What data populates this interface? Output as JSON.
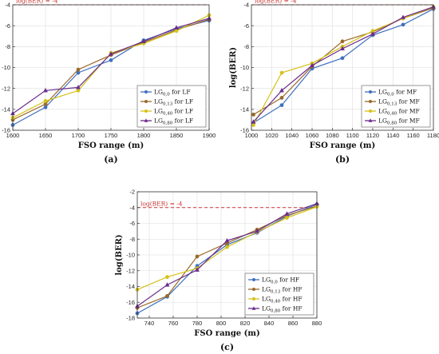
{
  "colors": {
    "LG00": "#3f6fbf",
    "LG013": "#9b6a2a",
    "LG040": "#d4c21a",
    "LG080": "#6a2c8c",
    "threshold": "#cc3333",
    "grid": "#dddddd"
  },
  "chart_data": [
    {
      "type": "line",
      "panel_label": "(a)",
      "xlabel": "FSO range (m)",
      "ylabel": "log(BER)",
      "xlim": [
        1600,
        1900
      ],
      "ylim": [
        -16,
        -4
      ],
      "xticks": [
        1600,
        1650,
        1700,
        1750,
        1800,
        1850,
        1900
      ],
      "yticks": [
        -16,
        -14,
        -12,
        -10,
        -8,
        -6,
        -4
      ],
      "grid": true,
      "legend_position": "bottom-right",
      "threshold": {
        "y": -4,
        "label": "log(BER) = -4"
      },
      "x": [
        1600,
        1650,
        1700,
        1750,
        1800,
        1850,
        1900
      ],
      "series": [
        {
          "name_base": "LG",
          "name_sub": "0,0",
          "name_suffix": " for LF",
          "color_key": "LG00",
          "values": [
            -15.5,
            -13.8,
            -10.5,
            -9.3,
            -7.4,
            -6.3,
            -5.5
          ]
        },
        {
          "name_base": "LG",
          "name_sub": "0,13",
          "name_suffix": " for LF",
          "color_key": "LG013",
          "values": [
            -15.0,
            -13.5,
            -10.2,
            -8.8,
            -7.6,
            -6.4,
            -5.4
          ]
        },
        {
          "name_base": "LG",
          "name_sub": "0,40",
          "name_suffix": " for LF",
          "color_key": "LG040",
          "values": [
            -14.8,
            -13.2,
            -12.2,
            -8.6,
            -7.7,
            -6.5,
            -5.0
          ]
        },
        {
          "name_base": "LG",
          "name_sub": "0,80",
          "name_suffix": " for LF",
          "color_key": "LG080",
          "values": [
            -14.4,
            -12.2,
            -11.9,
            -8.7,
            -7.5,
            -6.2,
            -5.3
          ]
        }
      ]
    },
    {
      "type": "line",
      "panel_label": "(b)",
      "xlabel": "FSO range (m)",
      "ylabel": "log(BER)",
      "xlim": [
        1000,
        1180
      ],
      "ylim": [
        -16,
        -4
      ],
      "xticks": [
        1000,
        1020,
        1040,
        1060,
        1080,
        1100,
        1120,
        1140,
        1160,
        1180
      ],
      "yticks": [
        -16,
        -14,
        -12,
        -10,
        -8,
        -6,
        -4
      ],
      "grid": true,
      "legend_position": "bottom-right",
      "threshold": {
        "y": -4,
        "label": "log(BER) = -4"
      },
      "x": [
        1002,
        1030,
        1060,
        1090,
        1120,
        1150,
        1180
      ],
      "series": [
        {
          "name_base": "LG",
          "name_sub": "0,0",
          "name_suffix": " for MF",
          "color_key": "LG00",
          "values": [
            -15.3,
            -13.6,
            -10.1,
            -9.1,
            -6.9,
            -5.9,
            -4.4
          ]
        },
        {
          "name_base": "LG",
          "name_sub": "0,13",
          "name_suffix": " for MF",
          "color_key": "LG013",
          "values": [
            -14.5,
            -12.9,
            -9.9,
            -7.5,
            -6.6,
            -5.3,
            -4.3
          ]
        },
        {
          "name_base": "LG",
          "name_sub": "0,40",
          "name_suffix": " for MF",
          "color_key": "LG040",
          "values": [
            -15.5,
            -10.5,
            -9.6,
            -8.0,
            -6.5,
            -5.3,
            -4.2
          ]
        },
        {
          "name_base": "LG",
          "name_sub": "0,80",
          "name_suffix": " for MF",
          "color_key": "LG080",
          "values": [
            -15.2,
            -12.2,
            -9.8,
            -8.2,
            -6.8,
            -5.2,
            -4.2
          ]
        }
      ]
    },
    {
      "type": "line",
      "panel_label": "(c)",
      "xlabel": "FSO range (m)",
      "ylabel": "log(BER)",
      "xlim": [
        730,
        880
      ],
      "ylim": [
        -18,
        -2
      ],
      "xticks": [
        740,
        760,
        780,
        800,
        820,
        840,
        860,
        880
      ],
      "yticks": [
        -18,
        -16,
        -14,
        -12,
        -10,
        -8,
        -6,
        -4,
        -2
      ],
      "grid": true,
      "legend_position": "bottom-right",
      "threshold": {
        "y": -4,
        "label": "log(BER) = -4"
      },
      "x": [
        730,
        755,
        780,
        805,
        830,
        855,
        880
      ],
      "series": [
        {
          "name_base": "LG",
          "name_sub": "0,0",
          "name_suffix": " for HF",
          "color_key": "LG00",
          "values": [
            -17.4,
            -15.3,
            -11.4,
            -8.7,
            -7.2,
            -5.1,
            -3.6
          ]
        },
        {
          "name_base": "LG",
          "name_sub": "0,13",
          "name_suffix": " for HF",
          "color_key": "LG013",
          "values": [
            -16.7,
            -15.2,
            -10.2,
            -8.5,
            -6.8,
            -5.0,
            -3.8
          ]
        },
        {
          "name_base": "LG",
          "name_sub": "0,40",
          "name_suffix": " for HF",
          "color_key": "LG040",
          "values": [
            -14.4,
            -12.8,
            -11.7,
            -9.0,
            -7.1,
            -5.3,
            -3.9
          ]
        },
        {
          "name_base": "LG",
          "name_sub": "0,80",
          "name_suffix": " for HF",
          "color_key": "LG080",
          "values": [
            -16.5,
            -13.8,
            -11.9,
            -8.2,
            -7.0,
            -4.8,
            -3.5
          ]
        }
      ]
    }
  ]
}
